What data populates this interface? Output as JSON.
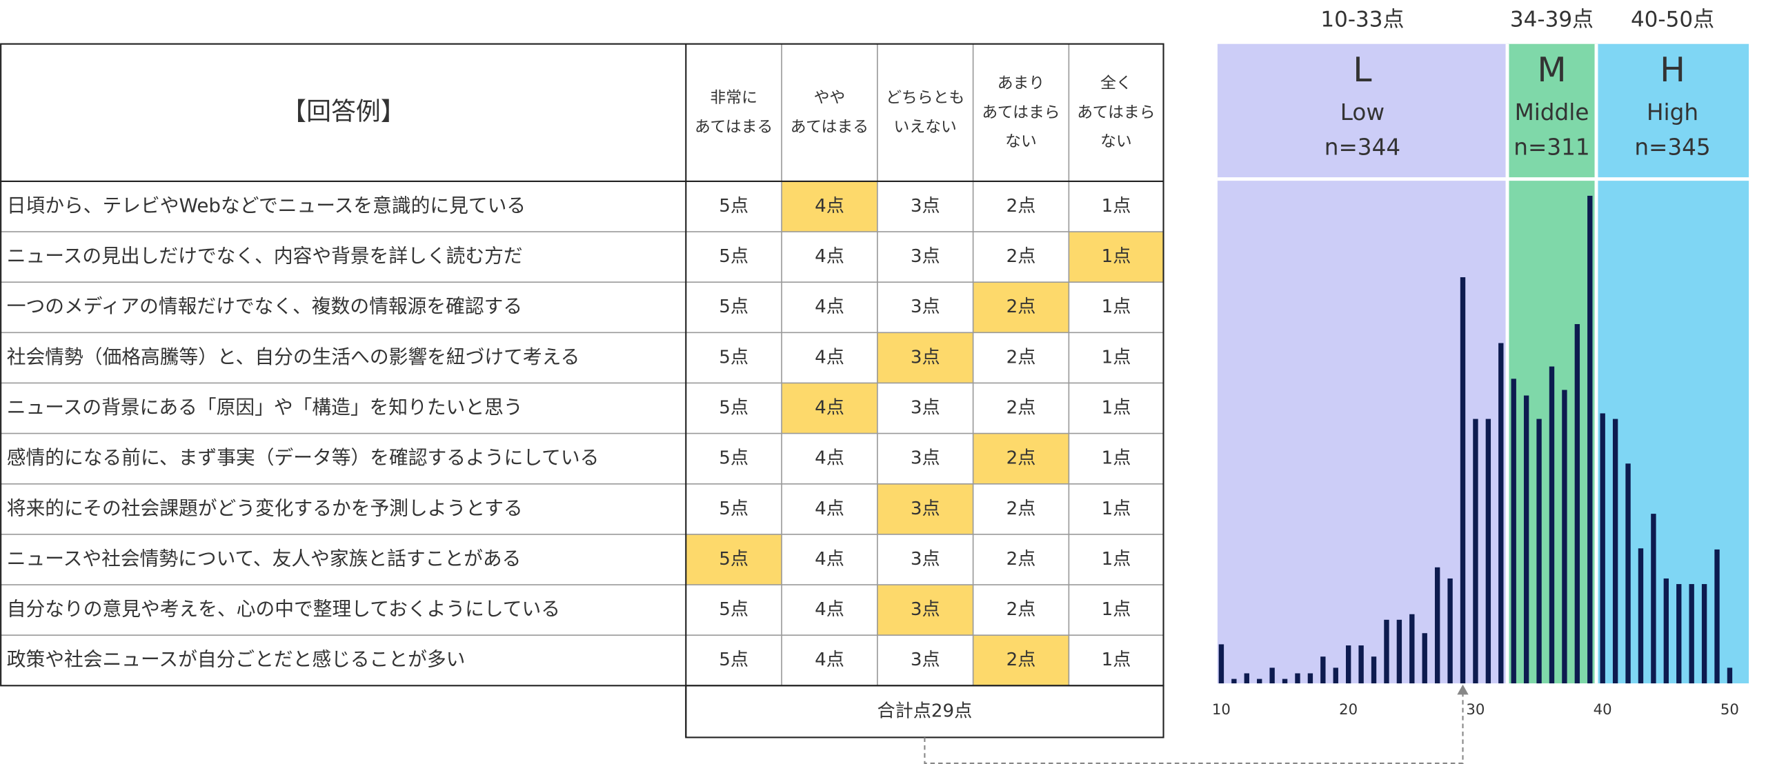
{
  "table": {
    "title": "【回答例】",
    "columns": [
      "非常に\nあてはまる",
      "やや\nあてはまる",
      "どちらとも\nいえない",
      "あまり\nあてはまら\nない",
      "全く\nあてはまら\nない"
    ],
    "highlight_color": "#fdd96b",
    "rows": [
      {
        "label": "日頃から、テレビやWebなどでニュースを意識的に見ている",
        "cells": [
          "5点",
          "4点",
          "3点",
          "2点",
          "1点"
        ],
        "selected": 1
      },
      {
        "label": "ニュースの見出しだけでなく、内容や背景を詳しく読む方だ",
        "cells": [
          "5点",
          "4点",
          "3点",
          "2点",
          "1点"
        ],
        "selected": 4
      },
      {
        "label": "一つのメディアの情報だけでなく、複数の情報源を確認する",
        "cells": [
          "5点",
          "4点",
          "3点",
          "2点",
          "1点"
        ],
        "selected": 3
      },
      {
        "label": "社会情勢（価格高騰等）と、自分の生活への影響を紐づけて考える",
        "cells": [
          "5点",
          "4点",
          "3点",
          "2点",
          "1点"
        ],
        "selected": 2
      },
      {
        "label": "ニュースの背景にある「原因」や「構造」を知りたいと思う",
        "cells": [
          "5点",
          "4点",
          "3点",
          "2点",
          "1点"
        ],
        "selected": 1
      },
      {
        "label": "感情的になる前に、まず事実（データ等）を確認するようにしている",
        "cells": [
          "5点",
          "4点",
          "3点",
          "2点",
          "1点"
        ],
        "selected": 3
      },
      {
        "label": "将来的にその社会課題がどう変化するかを予測しようとする",
        "cells": [
          "5点",
          "4点",
          "3点",
          "2点",
          "1点"
        ],
        "selected": 2
      },
      {
        "label": "ニュースや社会情勢について、友人や家族と話すことがある",
        "cells": [
          "5点",
          "4点",
          "3点",
          "2点",
          "1点"
        ],
        "selected": 0
      },
      {
        "label": "自分なりの意見や考えを、心の中で整理しておくようにしている",
        "cells": [
          "5点",
          "4点",
          "3点",
          "2点",
          "1点"
        ],
        "selected": 2
      },
      {
        "label": "政策や社会ニュースが自分ごとだと感じることが多い",
        "cells": [
          "5点",
          "4点",
          "3点",
          "2点",
          "1点"
        ],
        "selected": 3
      }
    ],
    "total": "合計点29点"
  },
  "chart_data": {
    "type": "bar",
    "x": [
      10,
      11,
      12,
      13,
      14,
      15,
      16,
      17,
      18,
      19,
      20,
      21,
      22,
      23,
      24,
      25,
      26,
      27,
      28,
      29,
      30,
      31,
      32,
      33,
      34,
      35,
      36,
      37,
      38,
      39,
      40,
      41,
      42,
      43,
      44,
      45,
      46,
      47,
      48,
      49,
      50
    ],
    "values": [
      35,
      4,
      9,
      4,
      14,
      4,
      9,
      9,
      24,
      14,
      34,
      34,
      24,
      57,
      57,
      62,
      45,
      104,
      94,
      364,
      237,
      237,
      305,
      273,
      258,
      237,
      284,
      263,
      322,
      437,
      242,
      237,
      197,
      121,
      152,
      94,
      89,
      89,
      89,
      120,
      14
    ],
    "color": "#0d1b4f",
    "xlim": [
      9.7,
      51.7
    ],
    "xticks": [
      10,
      20,
      30,
      40,
      50
    ],
    "ylim": [
      0,
      450
    ],
    "marker": 29,
    "bands": [
      {
        "range": [
          10,
          32
        ],
        "label": "10-33点",
        "letter": "L",
        "name": "Low",
        "n": "n=344",
        "color": "#cccdf7"
      },
      {
        "range": [
          33,
          39
        ],
        "label": "34-39点",
        "letter": "M",
        "name": "Middle",
        "n": "n=311",
        "color": "#7fd8a9"
      },
      {
        "range": [
          40,
          51
        ],
        "label": "40-50点",
        "letter": "H",
        "name": "High",
        "n": "n=345",
        "color": "#7fd6f4"
      }
    ]
  }
}
